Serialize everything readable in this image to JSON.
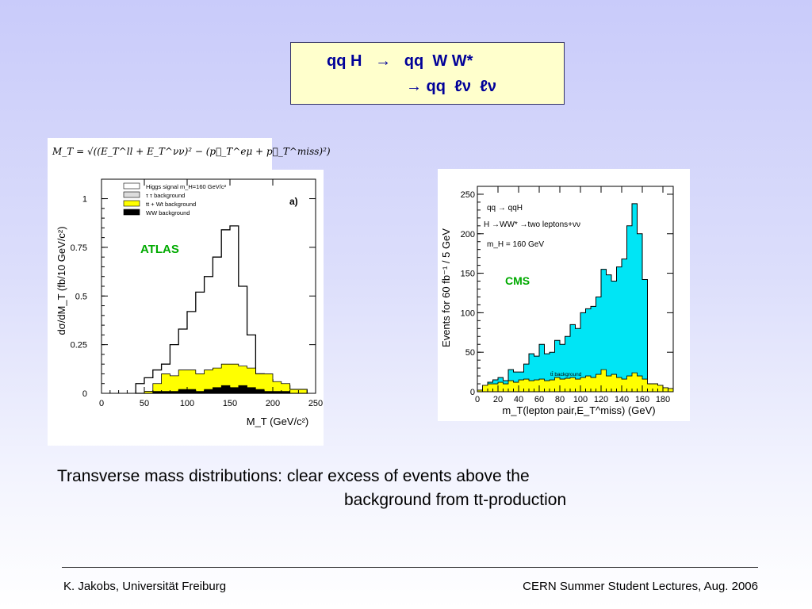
{
  "title_box": {
    "line1": "qq H   →   qq  W W*",
    "line2": "→ qq  ℓν  ℓν"
  },
  "formula": "M_T = √((E_T^ll + E_T^νν)² − (p⃗_T^eμ + p⃗_T^miss)²)",
  "caption": {
    "line1": "Transverse mass distributions:  clear excess of events above the",
    "line2": "background from tt-production"
  },
  "footer": {
    "left": "K. Jakobs,  Universität Freiburg",
    "right": "CERN Summer Student Lectures,  Aug. 2006"
  },
  "colors": {
    "experiment_label": "#00aa00",
    "title_text": "#000099",
    "cms_signal": "#00e5f5",
    "background_fill": "#ffff00",
    "ww_fill": "#000000"
  },
  "chart_data": [
    {
      "type": "area",
      "label": "ATLAS",
      "panel_tag": "a)",
      "xlabel": "M_T (GeV/c²)",
      "ylabel": "dσ/dM_T (fb/10 GeV/c²)",
      "xlim": [
        0,
        250
      ],
      "ylim": [
        0,
        1.1
      ],
      "xticks": [
        "0",
        "50",
        "100",
        "150",
        "200",
        "250"
      ],
      "yticks": [
        "0",
        "0.25",
        "0.5",
        "0.75",
        "1"
      ],
      "x_edges": [
        40,
        50,
        60,
        70,
        80,
        90,
        100,
        110,
        120,
        130,
        140,
        150,
        160,
        170,
        180,
        190,
        200,
        210,
        220,
        230,
        240
      ],
      "legend": [
        "Higgs signal m_H=160 GeV/c²",
        "τ τ background",
        "tt + Wt background",
        "WW background"
      ],
      "series": [
        {
          "name": "Higgs signal m_H=160 GeV/c²",
          "values": [
            0.05,
            0.08,
            0.12,
            0.15,
            0.25,
            0.33,
            0.42,
            0.52,
            0.6,
            0.7,
            0.84,
            0.86,
            0.55,
            0.3,
            0.1,
            0.07,
            0.05,
            0.04,
            0.02,
            0.02
          ]
        },
        {
          "name": "tt + Wt background",
          "values": [
            0.0,
            0.01,
            0.05,
            0.1,
            0.09,
            0.12,
            0.12,
            0.1,
            0.12,
            0.13,
            0.15,
            0.15,
            0.14,
            0.13,
            0.1,
            0.1,
            0.06,
            0.05,
            0.02,
            0.02
          ]
        },
        {
          "name": "WW background",
          "values": [
            0.0,
            0.0,
            0.01,
            0.01,
            0.01,
            0.02,
            0.02,
            0.01,
            0.02,
            0.03,
            0.04,
            0.03,
            0.04,
            0.03,
            0.02,
            0.01,
            0.01,
            0.01,
            0.0,
            0.0
          ]
        }
      ]
    },
    {
      "type": "area",
      "label": "CMS",
      "xlabel": "m_T(lepton pair,E_T^miss) (GeV)",
      "ylabel": "Events for 60 fb⁻¹ / 5 GeV",
      "xlim": [
        0,
        190
      ],
      "ylim": [
        0,
        260
      ],
      "xticks": [
        "0",
        "20",
        "40",
        "60",
        "80",
        "100",
        "120",
        "140",
        "160",
        "180"
      ],
      "yticks": [
        "0",
        "50",
        "100",
        "150",
        "200",
        "250"
      ],
      "annotations": [
        "qq → qqH",
        "H →WW* →two leptons+νν",
        "m_H = 160 GeV",
        "tt̄ background"
      ],
      "x_edges": [
        0,
        5,
        10,
        15,
        20,
        25,
        30,
        35,
        40,
        45,
        50,
        55,
        60,
        65,
        70,
        75,
        80,
        85,
        90,
        95,
        100,
        105,
        110,
        115,
        120,
        125,
        130,
        135,
        140,
        145,
        150,
        155,
        160,
        165,
        170,
        175,
        180,
        185,
        190
      ],
      "series": [
        {
          "name": "signal + background",
          "values": [
            2,
            8,
            12,
            15,
            18,
            14,
            28,
            25,
            25,
            35,
            48,
            45,
            60,
            48,
            50,
            65,
            60,
            70,
            85,
            80,
            100,
            105,
            108,
            120,
            155,
            148,
            140,
            158,
            168,
            210,
            238,
            200,
            142,
            10,
            10,
            8,
            5,
            4
          ]
        },
        {
          "name": "tt̄ background",
          "values": [
            2,
            8,
            10,
            10,
            12,
            10,
            14,
            12,
            15,
            16,
            14,
            15,
            16,
            14,
            15,
            18,
            16,
            17,
            18,
            16,
            18,
            20,
            18,
            22,
            28,
            20,
            22,
            18,
            16,
            20,
            24,
            20,
            16,
            10,
            10,
            8,
            5,
            4
          ]
        }
      ]
    }
  ]
}
